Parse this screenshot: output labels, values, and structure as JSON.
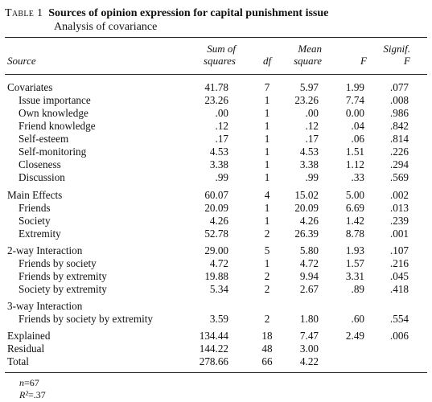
{
  "caption": {
    "label": "Table 1",
    "title": "Sources of opinion expression for capital punishment issue",
    "subtitle": "Analysis of covariance"
  },
  "headers": {
    "source": "Source",
    "ss_line1": "Sum of",
    "ss_line2": "squares",
    "df": "df",
    "ms_line1": "Mean",
    "ms_line2": "square",
    "f": "F",
    "sig_line1": "Signif.",
    "sig_line2": "F"
  },
  "rows": [
    {
      "source": "Covariates",
      "ss": "41.78",
      "df": "7",
      "ms": "5.97",
      "f": "1.99",
      "sig": ".077"
    },
    {
      "source": "Issue importance",
      "ss": "23.26",
      "df": "1",
      "ms": "23.26",
      "f": "7.74",
      "sig": ".008"
    },
    {
      "source": "Own knowledge",
      "ss": ".00",
      "df": "1",
      "ms": ".00",
      "f": "0.00",
      "sig": ".986"
    },
    {
      "source": "Friend knowledge",
      "ss": ".12",
      "df": "1",
      "ms": ".12",
      "f": ".04",
      "sig": ".842"
    },
    {
      "source": "Self-esteem",
      "ss": ".17",
      "df": "1",
      "ms": ".17",
      "f": ".06",
      "sig": ".814"
    },
    {
      "source": "Self-monitoring",
      "ss": "4.53",
      "df": "1",
      "ms": "4.53",
      "f": "1.51",
      "sig": ".226"
    },
    {
      "source": "Closeness",
      "ss": "3.38",
      "df": "1",
      "ms": "3.38",
      "f": "1.12",
      "sig": ".294"
    },
    {
      "source": "Discussion",
      "ss": ".99",
      "df": "1",
      "ms": ".99",
      "f": ".33",
      "sig": ".569"
    },
    {
      "source": "Main Effects",
      "ss": "60.07",
      "df": "4",
      "ms": "15.02",
      "f": "5.00",
      "sig": ".002"
    },
    {
      "source": "Friends",
      "ss": "20.09",
      "df": "1",
      "ms": "20.09",
      "f": "6.69",
      "sig": ".013"
    },
    {
      "source": "Society",
      "ss": "4.26",
      "df": "1",
      "ms": "4.26",
      "f": "1.42",
      "sig": ".239"
    },
    {
      "source": "Extremity",
      "ss": "52.78",
      "df": "2",
      "ms": "26.39",
      "f": "8.78",
      "sig": ".001"
    },
    {
      "source": "2-way Interaction",
      "ss": "29.00",
      "df": "5",
      "ms": "5.80",
      "f": "1.93",
      "sig": ".107"
    },
    {
      "source": "Friends by society",
      "ss": "4.72",
      "df": "1",
      "ms": "4.72",
      "f": "1.57",
      "sig": ".216"
    },
    {
      "source": "Friends by extremity",
      "ss": "19.88",
      "df": "2",
      "ms": "9.94",
      "f": "3.31",
      "sig": ".045"
    },
    {
      "source": "Society by extremity",
      "ss": "5.34",
      "df": "2",
      "ms": "2.67",
      "f": ".89",
      "sig": ".418"
    },
    {
      "source": "3-way Interaction",
      "ss": "",
      "df": "",
      "ms": "",
      "f": "",
      "sig": ""
    },
    {
      "source": "Friends by society by extremity",
      "ss": "3.59",
      "df": "2",
      "ms": "1.80",
      "f": ".60",
      "sig": ".554"
    },
    {
      "source": "Explained",
      "ss": "134.44",
      "df": "18",
      "ms": "7.47",
      "f": "2.49",
      "sig": ".006"
    },
    {
      "source": "Residual",
      "ss": "144.22",
      "df": "48",
      "ms": "3.00",
      "f": "",
      "sig": ""
    },
    {
      "source": "Total",
      "ss": "278.66",
      "df": "66",
      "ms": "4.22",
      "f": "",
      "sig": ""
    }
  ],
  "notes": {
    "n_label": "n",
    "n_value": "=67",
    "r2_label": "R²",
    "r2_value": "=.37"
  }
}
